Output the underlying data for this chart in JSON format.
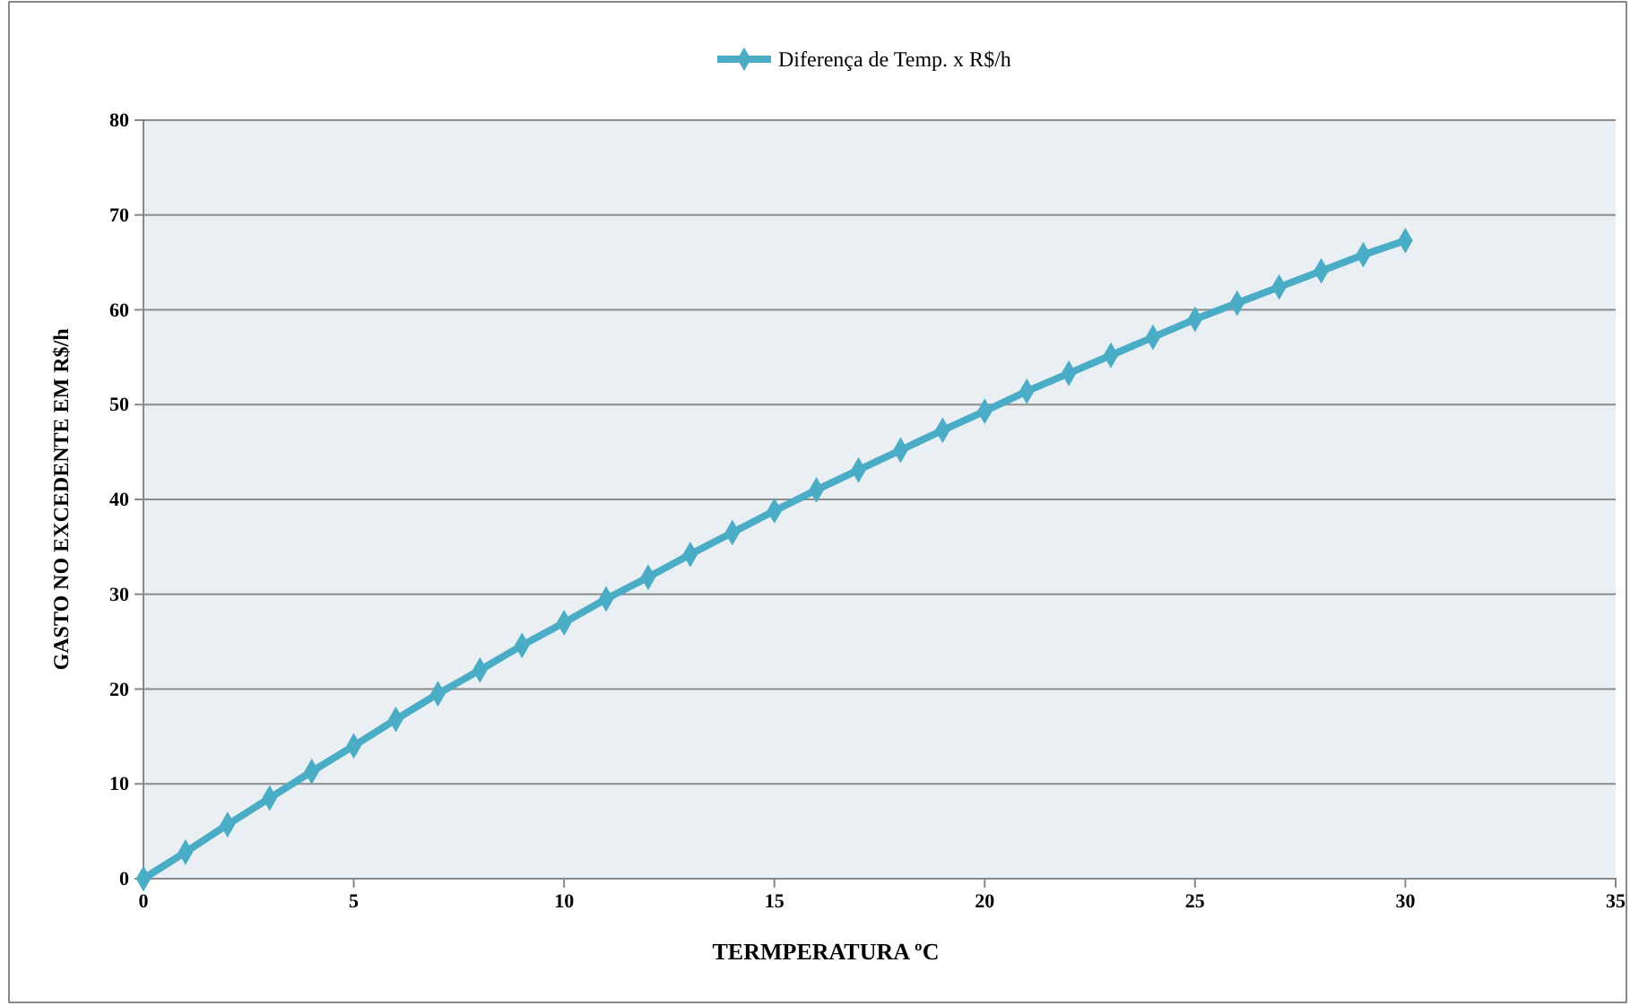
{
  "chart_data": {
    "type": "line",
    "xlabel": "TERMPERATURA   ºC",
    "ylabel": "GASTO NO EXCEDENTE  EM  R$/h",
    "x": [
      0,
      1,
      2,
      3,
      4,
      5,
      6,
      7,
      8,
      9,
      10,
      11,
      12,
      13,
      14,
      15,
      16,
      17,
      18,
      19,
      20,
      21,
      22,
      23,
      24,
      25,
      26,
      27,
      28,
      29,
      30
    ],
    "series": [
      {
        "name": "Diferença de Temp. x R$/h",
        "color": "#4bacc6",
        "values": [
          0,
          2.8,
          5.7,
          8.5,
          11.3,
          14.0,
          16.8,
          19.5,
          22.0,
          24.6,
          27.0,
          29.5,
          31.8,
          34.2,
          36.5,
          38.8,
          41.0,
          43.1,
          45.2,
          47.3,
          49.3,
          51.4,
          53.3,
          55.2,
          57.1,
          59.0,
          60.7,
          62.4,
          64.1,
          65.8,
          67.3
        ]
      }
    ],
    "xlim": [
      0,
      35
    ],
    "xticks": [
      0,
      5,
      10,
      15,
      20,
      25,
      30,
      35
    ],
    "ylim": [
      0,
      80
    ],
    "yticks": [
      0,
      10,
      20,
      30,
      40,
      50,
      60,
      70,
      80
    ],
    "grid": "y",
    "legend": "top",
    "marker": "diamond",
    "line_style": "solid"
  }
}
